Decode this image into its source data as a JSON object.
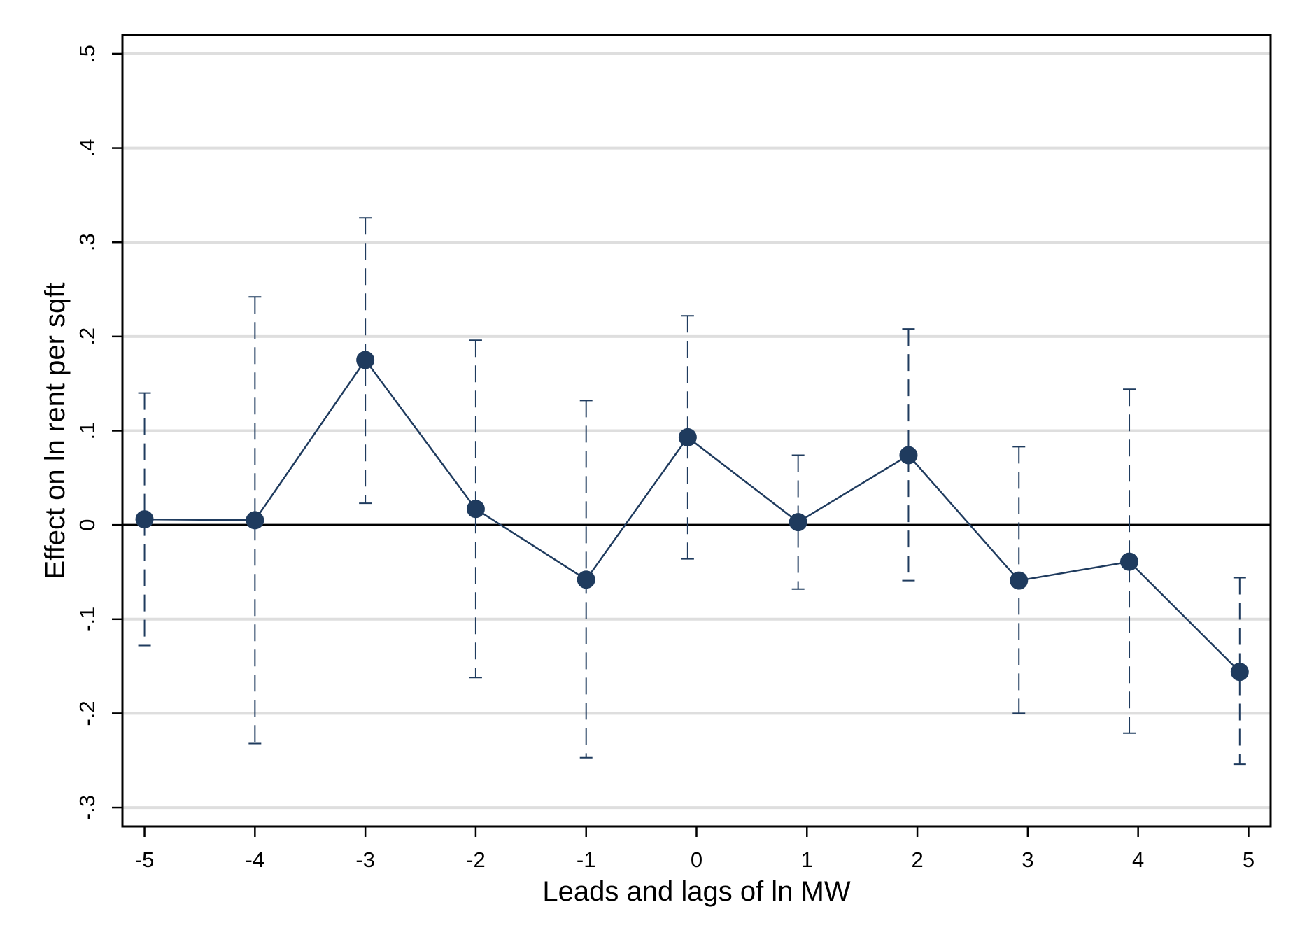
{
  "chart_data": {
    "type": "scatter",
    "xlabel": "Leads and lags of ln MW",
    "ylabel": "Effect on ln rent per sqft",
    "xlim": [
      -5.2,
      5.2
    ],
    "ylim": [
      -0.32,
      0.52
    ],
    "x_ticks": [
      {
        "value": -5,
        "label": "-5"
      },
      {
        "value": -4,
        "label": "-4"
      },
      {
        "value": -3,
        "label": "-3"
      },
      {
        "value": -2,
        "label": "-2"
      },
      {
        "value": -1,
        "label": "-1"
      },
      {
        "value": 0,
        "label": "0"
      },
      {
        "value": 1,
        "label": "1"
      },
      {
        "value": 2,
        "label": "2"
      },
      {
        "value": 3,
        "label": "3"
      },
      {
        "value": 4,
        "label": "4"
      },
      {
        "value": 5,
        "label": "5"
      }
    ],
    "y_ticks": [
      {
        "value": -0.3,
        "label": "-.3"
      },
      {
        "value": -0.2,
        "label": "-.2"
      },
      {
        "value": -0.1,
        "label": "-.1"
      },
      {
        "value": 0,
        "label": "0"
      },
      {
        "value": 0.1,
        "label": ".1"
      },
      {
        "value": 0.2,
        "label": ".2"
      },
      {
        "value": 0.3,
        "label": ".3"
      },
      {
        "value": 0.4,
        "label": ".4"
      },
      {
        "value": 0.5,
        "label": ".5"
      }
    ],
    "grid": true,
    "reference_line_y": 0,
    "series": [
      {
        "x": [
          -5,
          -4,
          -3,
          -2,
          -1,
          -0.08,
          0.92,
          1.92,
          2.92,
          3.92,
          4.92
        ],
        "y": [
          0.006,
          0.005,
          0.175,
          0.017,
          -0.058,
          0.093,
          0.003,
          0.074,
          -0.059,
          -0.039,
          -0.156
        ],
        "ci_low": [
          -0.128,
          -0.232,
          0.023,
          -0.162,
          -0.247,
          -0.036,
          -0.068,
          -0.059,
          -0.2,
          -0.221,
          -0.254
        ],
        "ci_high": [
          0.14,
          0.242,
          0.326,
          0.196,
          0.132,
          0.222,
          0.074,
          0.208,
          0.083,
          0.144,
          -0.056
        ]
      }
    ],
    "colors": {
      "series": "#1f3b5e",
      "grid": "#dedede",
      "frame": "#000000"
    }
  }
}
